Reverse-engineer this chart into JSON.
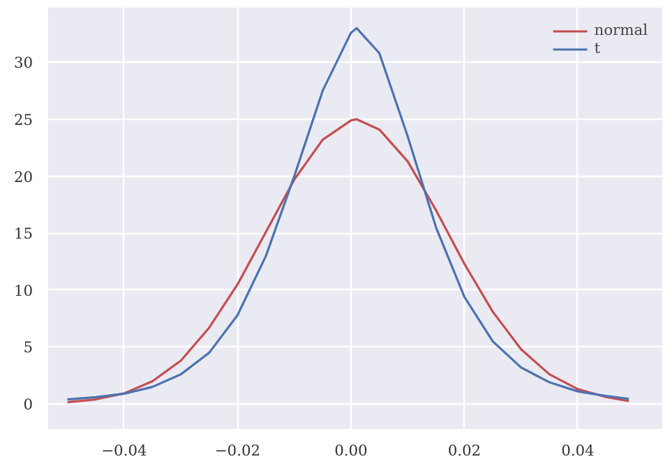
{
  "chart_data": {
    "type": "line",
    "xlim": [
      -0.0534,
      0.0549
    ],
    "ylim": [
      -2.2,
      34.8
    ],
    "xticks": [
      {
        "value": -0.04,
        "label": "−0.04"
      },
      {
        "value": -0.02,
        "label": "−0.02"
      },
      {
        "value": 0,
        "label": "0.00"
      },
      {
        "value": 0.02,
        "label": "0.02"
      },
      {
        "value": 0.04,
        "label": "0.04"
      }
    ],
    "yticks": [
      0,
      5,
      10,
      15,
      20,
      25,
      30
    ],
    "grid": true,
    "legend": "top right",
    "line_style": "solid",
    "marker": "none",
    "series": [
      {
        "name": "normal",
        "color": "#c44e52",
        "x": [
          -0.05,
          -0.045,
          -0.04,
          -0.035,
          -0.03,
          -0.025,
          -0.02,
          -0.015,
          -0.01,
          -0.005,
          0,
          0.001,
          0.005,
          0.01,
          0.015,
          0.02,
          0.025,
          0.03,
          0.035,
          0.04,
          0.045,
          0.049
        ],
        "values": [
          0.15,
          0.4,
          0.93,
          2.0,
          3.8,
          6.7,
          10.5,
          15.1,
          19.7,
          23.2,
          24.9,
          25.0,
          24.1,
          21.3,
          17.0,
          12.3,
          8.1,
          4.8,
          2.6,
          1.3,
          0.6,
          0.25
        ]
      },
      {
        "name": "t",
        "color": "#4c72b0",
        "x": [
          -0.05,
          -0.045,
          -0.04,
          -0.035,
          -0.03,
          -0.025,
          -0.02,
          -0.015,
          -0.01,
          -0.005,
          0,
          0.001,
          0.005,
          0.01,
          0.015,
          0.02,
          0.025,
          0.03,
          0.035,
          0.04,
          0.045,
          0.049
        ],
        "values": [
          0.4,
          0.6,
          0.9,
          1.5,
          2.6,
          4.5,
          7.8,
          13.0,
          20.0,
          27.5,
          32.6,
          33.0,
          30.8,
          23.5,
          15.5,
          9.4,
          5.5,
          3.2,
          1.9,
          1.1,
          0.7,
          0.45
        ]
      }
    ]
  }
}
